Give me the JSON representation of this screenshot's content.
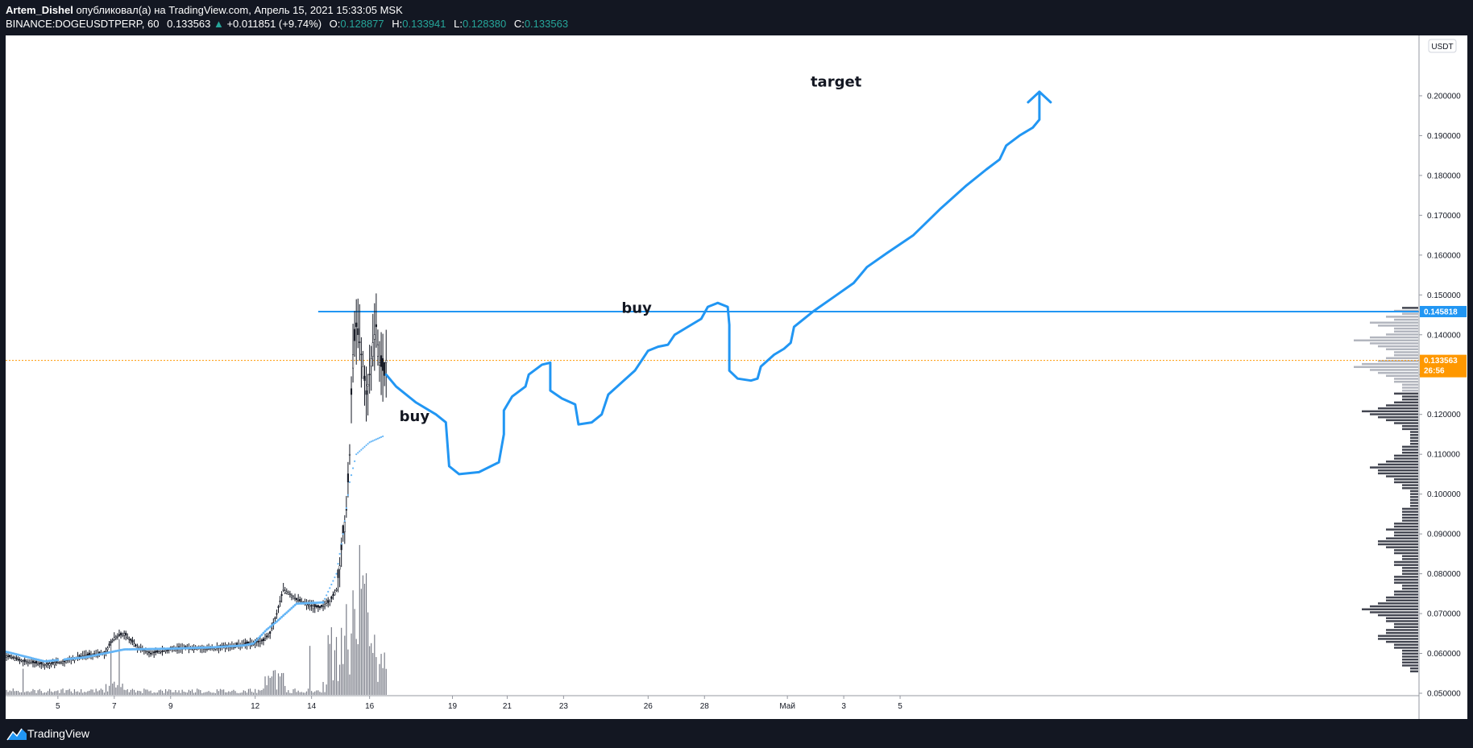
{
  "header": {
    "author": "Artem_Dishel",
    "published_text": "опубликовал(а) на TradingView.com, Апрель 15, 2021 15:33:05 MSK",
    "symbol": "BINANCE:DOGEUSDTPERP, 60",
    "last_price": "0.133563",
    "change": "+0.011851 (+9.74%)",
    "open_label": "O:",
    "open": "0.128877",
    "high_label": "H:",
    "high": "0.133941",
    "low_label": "L:",
    "low": "0.128380",
    "close_label": "C:",
    "close": "0.133563"
  },
  "footer": {
    "brand": "TradingView",
    "logo_icon": "tradingview-logo-icon"
  },
  "colors": {
    "background": "#131722",
    "up": "#26a69a",
    "drawing": "#2196f3",
    "price_tag": "#ff9800",
    "current_line": "#ff9800",
    "volume_profile_dark": "#434651",
    "volume_profile_light": "#b2b5be"
  },
  "chart_data": {
    "type": "line",
    "currency_label": "USDT",
    "y_ticks": [
      "0.050000",
      "0.060000",
      "0.070000",
      "0.080000",
      "0.090000",
      "0.100000",
      "0.110000",
      "0.120000",
      "0.130000",
      "0.140000",
      "0.150000",
      "0.160000",
      "0.170000",
      "0.180000",
      "0.190000",
      "0.200000"
    ],
    "ylim": [
      0.047,
      0.211
    ],
    "x_ticks": [
      "5",
      "7",
      "9",
      "12",
      "14",
      "16",
      "19",
      "21",
      "23",
      "26",
      "28",
      "Май",
      "3",
      "5"
    ],
    "resistance_level": 0.145818,
    "resistance_label": "0.145818",
    "current_price": 0.133563,
    "current_price_label": "0.133563",
    "countdown": "26:56",
    "annotations": [
      {
        "text": "buy",
        "x": "17",
        "y": 0.1195
      },
      {
        "text": "buy",
        "x": "25",
        "y": 0.1467
      },
      {
        "text": "target",
        "x": "Май",
        "y": 0.2035
      }
    ],
    "price_history": [
      [
        0,
        0.0595
      ],
      [
        6,
        0.058
      ],
      [
        12,
        0.0572
      ],
      [
        18,
        0.058
      ],
      [
        24,
        0.0595
      ],
      [
        30,
        0.06
      ],
      [
        33,
        0.064
      ],
      [
        36,
        0.065
      ],
      [
        40,
        0.0615
      ],
      [
        44,
        0.06
      ],
      [
        50,
        0.061
      ],
      [
        56,
        0.0615
      ],
      [
        62,
        0.0612
      ],
      [
        68,
        0.0618
      ],
      [
        74,
        0.0625
      ],
      [
        78,
        0.0632
      ],
      [
        80,
        0.065
      ],
      [
        82,
        0.07
      ],
      [
        84,
        0.076
      ],
      [
        86,
        0.075
      ],
      [
        88,
        0.0735
      ],
      [
        92,
        0.072
      ],
      [
        95,
        0.0715
      ],
      [
        98,
        0.073
      ],
      [
        100,
        0.076
      ],
      [
        101,
        0.082
      ],
      [
        102,
        0.09
      ],
      [
        103,
        0.096
      ],
      [
        104,
        0.11
      ],
      [
        104.5,
        0.125
      ],
      [
        105,
        0.135
      ],
      [
        106,
        0.142
      ],
      [
        107,
        0.138
      ],
      [
        108,
        0.132
      ],
      [
        109,
        0.125
      ],
      [
        110,
        0.13
      ],
      [
        111,
        0.138
      ],
      [
        112,
        0.142
      ],
      [
        113,
        0.133
      ],
      [
        114,
        0.131
      ],
      [
        114.4,
        0.129
      ],
      [
        115,
        0.1336
      ]
    ],
    "moving_average": [
      [
        0,
        0.0605
      ],
      [
        12,
        0.058
      ],
      [
        24,
        0.059
      ],
      [
        30,
        0.06
      ],
      [
        36,
        0.061
      ],
      [
        50,
        0.0612
      ],
      [
        62,
        0.0615
      ],
      [
        72,
        0.062
      ],
      [
        75,
        0.0625
      ],
      [
        79,
        0.066
      ],
      [
        82,
        0.068
      ],
      [
        88,
        0.0725
      ],
      [
        96,
        0.0728
      ],
      [
        100,
        0.08
      ],
      [
        102,
        0.09
      ],
      [
        104,
        0.103
      ],
      [
        106,
        0.11
      ],
      [
        110,
        0.113
      ],
      [
        114,
        0.1145
      ]
    ],
    "projection": [
      [
        115,
        0.13
      ],
      [
        118,
        0.127
      ],
      [
        124,
        0.123
      ],
      [
        130,
        0.12
      ],
      [
        133,
        0.118
      ],
      [
        134,
        0.107
      ],
      [
        137,
        0.105
      ],
      [
        143,
        0.1055
      ],
      [
        149,
        0.108
      ],
      [
        150.5,
        0.115
      ],
      [
        150.5,
        0.121
      ],
      [
        153,
        0.1245
      ],
      [
        157,
        0.127
      ],
      [
        158,
        0.13
      ],
      [
        162,
        0.1325
      ],
      [
        164.5,
        0.133
      ],
      [
        164.5,
        0.126
      ],
      [
        168,
        0.124
      ],
      [
        172,
        0.1225
      ],
      [
        173,
        0.1175
      ],
      [
        177,
        0.118
      ],
      [
        180,
        0.12
      ],
      [
        182,
        0.125
      ],
      [
        186,
        0.128
      ],
      [
        190,
        0.131
      ],
      [
        194,
        0.136
      ],
      [
        197,
        0.137
      ],
      [
        200,
        0.1375
      ],
      [
        202,
        0.14
      ],
      [
        206,
        0.142
      ],
      [
        210,
        0.144
      ],
      [
        212,
        0.147
      ],
      [
        215,
        0.148
      ],
      [
        218,
        0.147
      ],
      [
        218.5,
        0.1425
      ],
      [
        218.5,
        0.131
      ],
      [
        221,
        0.129
      ],
      [
        225,
        0.1285
      ],
      [
        227,
        0.129
      ],
      [
        228,
        0.132
      ],
      [
        232,
        0.135
      ],
      [
        235,
        0.1365
      ],
      [
        237,
        0.138
      ],
      [
        238,
        0.142
      ],
      [
        244,
        0.146
      ],
      [
        250,
        0.1495
      ],
      [
        256,
        0.153
      ],
      [
        260,
        0.157
      ],
      [
        266,
        0.1605
      ],
      [
        274,
        0.165
      ],
      [
        282,
        0.1715
      ],
      [
        290,
        0.1775
      ],
      [
        296,
        0.1815
      ],
      [
        300,
        0.184
      ],
      [
        302,
        0.1875
      ],
      [
        306,
        0.19
      ],
      [
        310,
        0.192
      ],
      [
        312,
        0.194
      ],
      [
        312,
        0.201
      ]
    ],
    "volume_profile": [
      0.2,
      0.3,
      0.2,
      0.4,
      0.3,
      0.6,
      0.5,
      0.3,
      0.3,
      0.4,
      0.6,
      0.8,
      0.6,
      0.5,
      0.4,
      0.3,
      0.3,
      0.4,
      0.5,
      0.7,
      0.8,
      0.6,
      0.5,
      0.4,
      0.3,
      0.3,
      0.2,
      0.2,
      0.2,
      0.3,
      0.2,
      0.2,
      0.3,
      0.4,
      0.5,
      0.7,
      0.6,
      0.5,
      0.4,
      0.3,
      0.2,
      0.2,
      0.1,
      0.1,
      0.1,
      0.1,
      0.1,
      0.2,
      0.2,
      0.2,
      0.3,
      0.3,
      0.4,
      0.5,
      0.6,
      0.5,
      0.5,
      0.4,
      0.3,
      0.3,
      0.2,
      0.2,
      0.1,
      0.1,
      0.1,
      0.1,
      0.1,
      0.1,
      0.2,
      0.2,
      0.2,
      0.2,
      0.2,
      0.3,
      0.3,
      0.4,
      0.3,
      0.3,
      0.4,
      0.5,
      0.5,
      0.4,
      0.3,
      0.3,
      0.2,
      0.2,
      0.3,
      0.3,
      0.2,
      0.2,
      0.2,
      0.3,
      0.3,
      0.3,
      0.2,
      0.2,
      0.3,
      0.3,
      0.4,
      0.4,
      0.5,
      0.6,
      0.7,
      0.6,
      0.5,
      0.4,
      0.4,
      0.3,
      0.3,
      0.4,
      0.4,
      0.5,
      0.5,
      0.4,
      0.3,
      0.3,
      0.2,
      0.2,
      0.2,
      0.2,
      0.2,
      0.2,
      0.1,
      0.1
    ]
  }
}
